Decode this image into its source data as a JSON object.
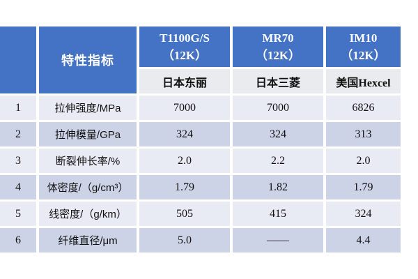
{
  "table": {
    "header": {
      "feature_label": "特性指标",
      "products": [
        {
          "name": "T1100G/S",
          "spec": "（12K）",
          "maker": "日本东丽"
        },
        {
          "name": "MR70",
          "spec": "（12K）",
          "maker": "日本三菱"
        },
        {
          "name": "IM10",
          "spec": "（12K）",
          "maker": "美国Hexcel"
        }
      ]
    },
    "rows": [
      {
        "no": "1",
        "label": "拉伸强度/MPa",
        "values": [
          "7000",
          "7000",
          "6826"
        ]
      },
      {
        "no": "2",
        "label": "拉伸模量/GPa",
        "values": [
          "324",
          "324",
          "313"
        ]
      },
      {
        "no": "3",
        "label": "断裂伸长率/%",
        "values": [
          "2.0",
          "2.2",
          "2.0"
        ]
      },
      {
        "no": "4",
        "label": "体密度/（g/cm³）",
        "values": [
          "1.79",
          "1.82",
          "1.79"
        ]
      },
      {
        "no": "5",
        "label": "线密度/（g/km）",
        "values": [
          "505",
          "415",
          "324"
        ]
      },
      {
        "no": "6",
        "label": "纤维直径/μm",
        "values": [
          "5.0",
          "——",
          "4.4"
        ]
      }
    ]
  },
  "colors": {
    "header_blue": "#4472c4",
    "subheader_gray": "#eaebee",
    "row_light": "#e8ebf4",
    "row_dark": "#ccd3e6",
    "header_text": "#ffffff",
    "body_text": "#111111",
    "page_background": "#ffffff"
  }
}
